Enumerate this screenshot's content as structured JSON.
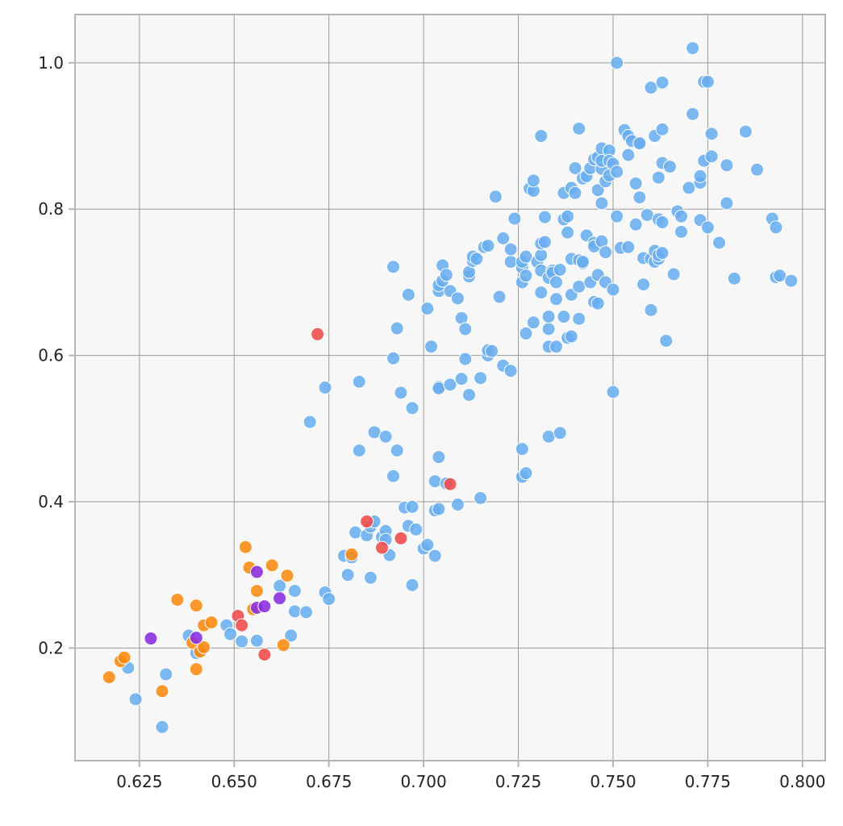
{
  "chart_data": {
    "type": "scatter",
    "title": "",
    "xlabel": "",
    "ylabel": "",
    "xlim": [
      0.608,
      0.806
    ],
    "ylim": [
      0.046,
      1.066
    ],
    "grid": true,
    "x_ticks": [
      "0.625",
      "0.650",
      "0.675",
      "0.700",
      "0.725",
      "0.750",
      "0.775",
      "0.800"
    ],
    "x_tick_values": [
      0.625,
      0.65,
      0.675,
      0.7,
      0.725,
      0.75,
      0.775,
      0.8
    ],
    "y_ticks": [
      "0.2",
      "0.4",
      "0.6",
      "0.8",
      "1.0"
    ],
    "y_tick_values": [
      0.2,
      0.4,
      0.6,
      0.8,
      1.0
    ],
    "colors": {
      "background": "#f7f7f7",
      "grid": "#9a9a9a",
      "axis": "#b5b5b5"
    },
    "series": [
      {
        "color": "#6aaef0",
        "points": [
          [
            0.622,
            0.173
          ],
          [
            0.624,
            0.13
          ],
          [
            0.631,
            0.092
          ],
          [
            0.632,
            0.164
          ],
          [
            0.638,
            0.217
          ],
          [
            0.64,
            0.193
          ],
          [
            0.641,
            0.197
          ],
          [
            0.648,
            0.231
          ],
          [
            0.649,
            0.219
          ],
          [
            0.652,
            0.209
          ],
          [
            0.656,
            0.21
          ],
          [
            0.662,
            0.285
          ],
          [
            0.665,
            0.217
          ],
          [
            0.666,
            0.278
          ],
          [
            0.666,
            0.25
          ],
          [
            0.669,
            0.249
          ],
          [
            0.67,
            0.509
          ],
          [
            0.674,
            0.276
          ],
          [
            0.674,
            0.556
          ],
          [
            0.675,
            0.267
          ],
          [
            0.679,
            0.326
          ],
          [
            0.68,
            0.3
          ],
          [
            0.681,
            0.324
          ],
          [
            0.682,
            0.358
          ],
          [
            0.683,
            0.564
          ],
          [
            0.683,
            0.47
          ],
          [
            0.685,
            0.354
          ],
          [
            0.686,
            0.296
          ],
          [
            0.686,
            0.366
          ],
          [
            0.687,
            0.495
          ],
          [
            0.687,
            0.373
          ],
          [
            0.689,
            0.352
          ],
          [
            0.69,
            0.489
          ],
          [
            0.69,
            0.36
          ],
          [
            0.69,
            0.348
          ],
          [
            0.691,
            0.327
          ],
          [
            0.692,
            0.435
          ],
          [
            0.692,
            0.596
          ],
          [
            0.692,
            0.721
          ],
          [
            0.693,
            0.47
          ],
          [
            0.693,
            0.637
          ],
          [
            0.694,
            0.549
          ],
          [
            0.695,
            0.392
          ],
          [
            0.696,
            0.367
          ],
          [
            0.696,
            0.683
          ],
          [
            0.697,
            0.528
          ],
          [
            0.697,
            0.393
          ],
          [
            0.697,
            0.286
          ],
          [
            0.698,
            0.362
          ],
          [
            0.7,
            0.336
          ],
          [
            0.701,
            0.341
          ],
          [
            0.701,
            0.664
          ],
          [
            0.702,
            0.612
          ],
          [
            0.703,
            0.388
          ],
          [
            0.703,
            0.326
          ],
          [
            0.703,
            0.428
          ],
          [
            0.704,
            0.39
          ],
          [
            0.704,
            0.461
          ],
          [
            0.704,
            0.557
          ],
          [
            0.704,
            0.555
          ],
          [
            0.704,
            0.688
          ],
          [
            0.704,
            0.696
          ],
          [
            0.705,
            0.723
          ],
          [
            0.705,
            0.702
          ],
          [
            0.706,
            0.71
          ],
          [
            0.706,
            0.425
          ],
          [
            0.707,
            0.688
          ],
          [
            0.707,
            0.56
          ],
          [
            0.709,
            0.678
          ],
          [
            0.709,
            0.396
          ],
          [
            0.71,
            0.651
          ],
          [
            0.71,
            0.568
          ],
          [
            0.711,
            0.636
          ],
          [
            0.711,
            0.595
          ],
          [
            0.712,
            0.708
          ],
          [
            0.712,
            0.714
          ],
          [
            0.712,
            0.546
          ],
          [
            0.713,
            0.729
          ],
          [
            0.713,
            0.735
          ],
          [
            0.714,
            0.732
          ],
          [
            0.715,
            0.405
          ],
          [
            0.715,
            0.569
          ],
          [
            0.716,
            0.748
          ],
          [
            0.717,
            0.6
          ],
          [
            0.717,
            0.607
          ],
          [
            0.717,
            0.75
          ],
          [
            0.718,
            0.606
          ],
          [
            0.719,
            0.817
          ],
          [
            0.72,
            0.68
          ],
          [
            0.721,
            0.586
          ],
          [
            0.721,
            0.76
          ],
          [
            0.723,
            0.579
          ],
          [
            0.723,
            0.728
          ],
          [
            0.723,
            0.745
          ],
          [
            0.724,
            0.787
          ],
          [
            0.726,
            0.434
          ],
          [
            0.726,
            0.472
          ],
          [
            0.726,
            0.7
          ],
          [
            0.726,
            0.72
          ],
          [
            0.726,
            0.728
          ],
          [
            0.727,
            0.439
          ],
          [
            0.727,
            0.709
          ],
          [
            0.727,
            0.735
          ],
          [
            0.727,
            0.63
          ],
          [
            0.728,
            0.828
          ],
          [
            0.729,
            0.645
          ],
          [
            0.729,
            0.825
          ],
          [
            0.729,
            0.839
          ],
          [
            0.73,
            0.728
          ],
          [
            0.731,
            0.716
          ],
          [
            0.731,
            0.9
          ],
          [
            0.731,
            0.737
          ],
          [
            0.731,
            0.753
          ],
          [
            0.731,
            0.686
          ],
          [
            0.732,
            0.755
          ],
          [
            0.732,
            0.789
          ],
          [
            0.733,
            0.489
          ],
          [
            0.733,
            0.612
          ],
          [
            0.733,
            0.636
          ],
          [
            0.733,
            0.653
          ],
          [
            0.733,
            0.706
          ],
          [
            0.734,
            0.716
          ],
          [
            0.734,
            0.713
          ],
          [
            0.735,
            0.612
          ],
          [
            0.735,
            0.677
          ],
          [
            0.735,
            0.7
          ],
          [
            0.736,
            0.494
          ],
          [
            0.736,
            0.717
          ],
          [
            0.737,
            0.653
          ],
          [
            0.737,
            0.786
          ],
          [
            0.737,
            0.822
          ],
          [
            0.738,
            0.624
          ],
          [
            0.738,
            0.768
          ],
          [
            0.738,
            0.79
          ],
          [
            0.739,
            0.732
          ],
          [
            0.739,
            0.626
          ],
          [
            0.739,
            0.683
          ],
          [
            0.739,
            0.829
          ],
          [
            0.74,
            0.822
          ],
          [
            0.74,
            0.856
          ],
          [
            0.741,
            0.91
          ],
          [
            0.741,
            0.65
          ],
          [
            0.741,
            0.694
          ],
          [
            0.741,
            0.73
          ],
          [
            0.742,
            0.726
          ],
          [
            0.742,
            0.842
          ],
          [
            0.742,
            0.728
          ],
          [
            0.743,
            0.764
          ],
          [
            0.743,
            0.845
          ],
          [
            0.744,
            0.7
          ],
          [
            0.744,
            0.856
          ],
          [
            0.745,
            0.673
          ],
          [
            0.745,
            0.754
          ],
          [
            0.745,
            0.749
          ],
          [
            0.745,
            0.868
          ],
          [
            0.746,
            0.671
          ],
          [
            0.746,
            0.71
          ],
          [
            0.746,
            0.826
          ],
          [
            0.746,
            0.871
          ],
          [
            0.747,
            0.883
          ],
          [
            0.747,
            0.756
          ],
          [
            0.747,
            0.808
          ],
          [
            0.747,
            0.855
          ],
          [
            0.747,
            0.866
          ],
          [
            0.748,
            0.7
          ],
          [
            0.748,
            0.741
          ],
          [
            0.748,
            0.838
          ],
          [
            0.749,
            0.88
          ],
          [
            0.749,
            0.846
          ],
          [
            0.749,
            0.866
          ],
          [
            0.75,
            0.55
          ],
          [
            0.75,
            0.69
          ],
          [
            0.75,
            0.862
          ],
          [
            0.751,
            0.79
          ],
          [
            0.751,
            0.851
          ],
          [
            0.751,
            1.0
          ],
          [
            0.752,
            0.747
          ],
          [
            0.753,
            0.908
          ],
          [
            0.754,
            0.874
          ],
          [
            0.754,
            0.9
          ],
          [
            0.754,
            0.748
          ],
          [
            0.755,
            0.893
          ],
          [
            0.756,
            0.779
          ],
          [
            0.756,
            0.835
          ],
          [
            0.757,
            0.889
          ],
          [
            0.757,
            0.816
          ],
          [
            0.757,
            0.89
          ],
          [
            0.758,
            0.697
          ],
          [
            0.758,
            0.733
          ],
          [
            0.759,
            0.792
          ],
          [
            0.76,
            0.732
          ],
          [
            0.76,
            0.662
          ],
          [
            0.76,
            0.966
          ],
          [
            0.761,
            0.9
          ],
          [
            0.761,
            0.728
          ],
          [
            0.761,
            0.743
          ],
          [
            0.762,
            0.843
          ],
          [
            0.762,
            0.786
          ],
          [
            0.762,
            0.732
          ],
          [
            0.762,
            0.737
          ],
          [
            0.763,
            0.909
          ],
          [
            0.763,
            0.863
          ],
          [
            0.763,
            0.973
          ],
          [
            0.763,
            0.782
          ],
          [
            0.763,
            0.74
          ],
          [
            0.764,
            0.62
          ],
          [
            0.765,
            0.858
          ],
          [
            0.766,
            0.711
          ],
          [
            0.767,
            0.797
          ],
          [
            0.768,
            0.79
          ],
          [
            0.768,
            0.769
          ],
          [
            0.77,
            0.829
          ],
          [
            0.771,
            0.93
          ],
          [
            0.771,
            1.02
          ],
          [
            0.773,
            0.836
          ],
          [
            0.773,
            0.785
          ],
          [
            0.773,
            0.845
          ],
          [
            0.774,
            0.866
          ],
          [
            0.774,
            0.974
          ],
          [
            0.775,
            0.775
          ],
          [
            0.775,
            0.974
          ],
          [
            0.776,
            0.903
          ],
          [
            0.776,
            0.872
          ],
          [
            0.778,
            0.754
          ],
          [
            0.78,
            0.808
          ],
          [
            0.78,
            0.86
          ],
          [
            0.782,
            0.705
          ],
          [
            0.785,
            0.906
          ],
          [
            0.788,
            0.854
          ],
          [
            0.792,
            0.787
          ],
          [
            0.793,
            0.707
          ],
          [
            0.793,
            0.775
          ],
          [
            0.794,
            0.709
          ],
          [
            0.797,
            0.702
          ]
        ]
      },
      {
        "color": "#ff8a10",
        "points": [
          [
            0.617,
            0.16
          ],
          [
            0.62,
            0.182
          ],
          [
            0.621,
            0.187
          ],
          [
            0.631,
            0.141
          ],
          [
            0.635,
            0.266
          ],
          [
            0.639,
            0.207
          ],
          [
            0.64,
            0.258
          ],
          [
            0.64,
            0.171
          ],
          [
            0.641,
            0.195
          ],
          [
            0.642,
            0.231
          ],
          [
            0.642,
            0.201
          ],
          [
            0.644,
            0.235
          ],
          [
            0.653,
            0.338
          ],
          [
            0.654,
            0.31
          ],
          [
            0.655,
            0.253
          ],
          [
            0.656,
            0.278
          ],
          [
            0.66,
            0.313
          ],
          [
            0.663,
            0.204
          ],
          [
            0.664,
            0.299
          ],
          [
            0.681,
            0.328
          ]
        ]
      },
      {
        "color": "#f04a4a",
        "points": [
          [
            0.651,
            0.244
          ],
          [
            0.652,
            0.231
          ],
          [
            0.658,
            0.191
          ],
          [
            0.672,
            0.629
          ],
          [
            0.685,
            0.373
          ],
          [
            0.689,
            0.337
          ],
          [
            0.694,
            0.35
          ],
          [
            0.707,
            0.424
          ]
        ]
      },
      {
        "color": "#8a2be2",
        "points": [
          [
            0.628,
            0.213
          ],
          [
            0.64,
            0.214
          ],
          [
            0.656,
            0.304
          ],
          [
            0.656,
            0.255
          ],
          [
            0.658,
            0.257
          ],
          [
            0.662,
            0.268
          ]
        ]
      }
    ]
  }
}
